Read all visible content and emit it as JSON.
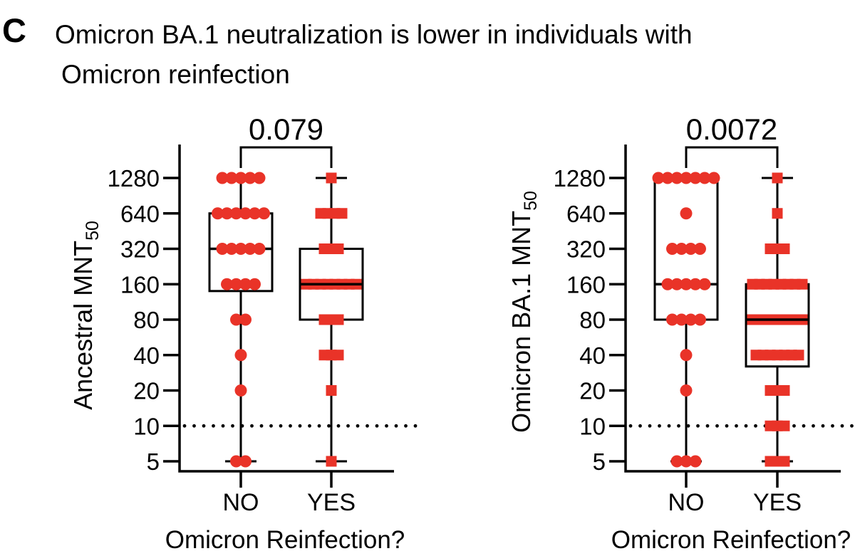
{
  "panel_label": "C",
  "title_line1": "Omicron BA.1 neutralization is lower in individuals with",
  "title_line2": "Omicron reinfection",
  "colors": {
    "marker_red": "#E93328",
    "line_black": "#000000"
  },
  "chart_data": [
    {
      "type": "box-dot",
      "name": "ancestral",
      "ylabel": "Ancestral MNT",
      "ylabel_subscript": "50",
      "xlabel": "Omicron Reinfection?",
      "p_value": "0.079",
      "y_scale": "log2",
      "ylim": [
        5,
        1280
      ],
      "y_ticks": [
        1280,
        640,
        320,
        160,
        80,
        40,
        20,
        10,
        5
      ],
      "dotted_line_at": 10,
      "categories": [
        "NO",
        "YES"
      ],
      "groups": [
        {
          "label": "NO",
          "marker": "circle",
          "points": [
            {
              "value": 1280,
              "count": 5
            },
            {
              "value": 640,
              "count": 6
            },
            {
              "value": 320,
              "count": 5
            },
            {
              "value": 160,
              "count": 4
            },
            {
              "value": 80,
              "count": 2
            },
            {
              "value": 40,
              "count": 1
            },
            {
              "value": 20,
              "count": 1
            },
            {
              "value": 5,
              "count": 2
            }
          ],
          "box": {
            "q3": 640,
            "median": 320,
            "q1": 140,
            "whisker_high": 1280,
            "whisker_low": 5,
            "cap_top": false,
            "cap_bottom": true,
            "median_on_top": false
          }
        },
        {
          "label": "YES",
          "marker": "square",
          "points": [
            {
              "value": 1280,
              "count": 1
            },
            {
              "value": 640,
              "count": 4
            },
            {
              "value": 320,
              "count": 3
            },
            {
              "value": 160,
              "count": 8
            },
            {
              "value": 80,
              "count": 3
            },
            {
              "value": 40,
              "count": 3
            },
            {
              "value": 20,
              "count": 1
            },
            {
              "value": 5,
              "count": 1
            }
          ],
          "box": {
            "q3": 320,
            "median": 160,
            "q1": 80,
            "whisker_high": 1280,
            "whisker_low": 5,
            "cap_top": true,
            "cap_bottom": true,
            "median_on_top": true
          }
        }
      ]
    },
    {
      "type": "box-dot",
      "name": "omicron-ba1",
      "ylabel": "Omicron BA.1 MNT",
      "ylabel_subscript": "50",
      "xlabel": "Omicron Reinfection?",
      "p_value": "0.0072",
      "y_scale": "log2",
      "ylim": [
        5,
        1280
      ],
      "y_ticks": [
        1280,
        640,
        320,
        160,
        80,
        40,
        20,
        10,
        5
      ],
      "dotted_line_at": 10,
      "categories": [
        "NO",
        "YES"
      ],
      "groups": [
        {
          "label": "NO",
          "marker": "circle",
          "points": [
            {
              "value": 1280,
              "count": 7
            },
            {
              "value": 640,
              "count": 1
            },
            {
              "value": 320,
              "count": 4
            },
            {
              "value": 160,
              "count": 5
            },
            {
              "value": 80,
              "count": 4
            },
            {
              "value": 40,
              "count": 1
            },
            {
              "value": 20,
              "count": 1
            },
            {
              "value": 5,
              "count": 3
            }
          ],
          "box": {
            "q3": 1280,
            "median": 160,
            "q1": 80,
            "whisker_high": 1280,
            "whisker_low": 5,
            "cap_top": false,
            "cap_bottom": true,
            "median_on_top": false
          }
        },
        {
          "label": "YES",
          "marker": "square",
          "points": [
            {
              "value": 1280,
              "count": 1
            },
            {
              "value": 640,
              "count": 1
            },
            {
              "value": 320,
              "count": 3
            },
            {
              "value": 160,
              "count": 8
            },
            {
              "value": 80,
              "count": 8
            },
            {
              "value": 40,
              "count": 7
            },
            {
              "value": 20,
              "count": 3
            },
            {
              "value": 10,
              "count": 3
            },
            {
              "value": 5,
              "count": 3
            }
          ],
          "box": {
            "q3": 160,
            "median": 80,
            "q1": 32,
            "whisker_high": 1280,
            "whisker_low": 5,
            "cap_top": true,
            "cap_bottom": true,
            "median_on_top": true
          }
        }
      ]
    }
  ]
}
